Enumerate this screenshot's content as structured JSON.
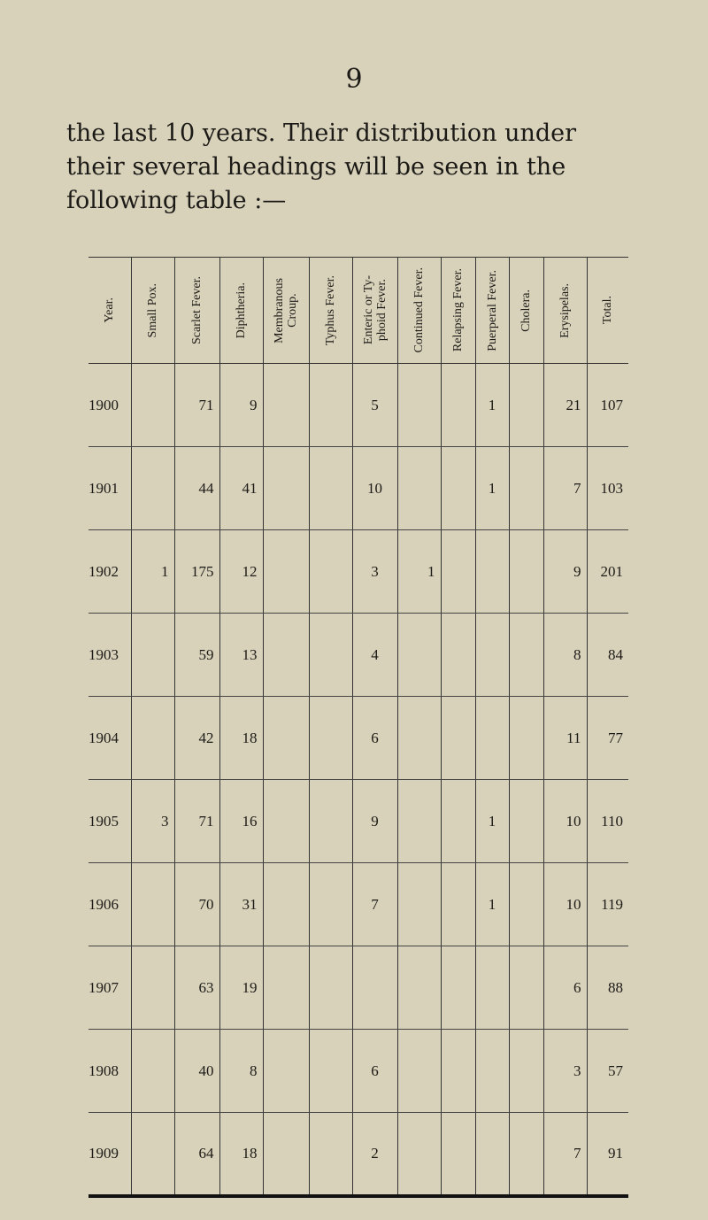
{
  "page_number": "9",
  "paragraph": "the last 10 years. Their distribution under their several headings will be seen in the following table :—",
  "table": {
    "headers": [
      "Year.",
      "Small Pox.",
      "Scarlet Fever.",
      "Diphtheria.",
      "Membranous\nCroup.",
      "Typhus Fever.",
      "Enteric or Ty-\nphoid Fever.",
      "Continued Fever.",
      "Relapsing Fever.",
      "Puerperal Fever.",
      "Cholera.",
      "Erysipelas.",
      "Total."
    ],
    "rows": [
      [
        "1900",
        "",
        "71",
        "9",
        "",
        "",
        "5",
        "",
        "",
        "1",
        "",
        "21",
        "107"
      ],
      [
        "1901",
        "",
        "44",
        "41",
        "",
        "",
        "10",
        "",
        "",
        "1",
        "",
        "7",
        "103"
      ],
      [
        "1902",
        "1",
        "175",
        "12",
        "",
        "",
        "3",
        "1",
        "",
        "",
        "",
        "9",
        "201"
      ],
      [
        "1903",
        "",
        "59",
        "13",
        "",
        "",
        "4",
        "",
        "",
        "",
        "",
        "8",
        "84"
      ],
      [
        "1904",
        "",
        "42",
        "18",
        "",
        "",
        "6",
        "",
        "",
        "",
        "",
        "11",
        "77"
      ],
      [
        "1905",
        "3",
        "71",
        "16",
        "",
        "",
        "9",
        "",
        "",
        "1",
        "",
        "10",
        "110"
      ],
      [
        "1906",
        "",
        "70",
        "31",
        "",
        "",
        "7",
        "",
        "",
        "1",
        "",
        "10",
        "119"
      ],
      [
        "1907",
        "",
        "63",
        "19",
        "",
        "",
        "",
        "",
        "",
        "",
        "",
        "6",
        "88"
      ],
      [
        "1908",
        "",
        "40",
        "8",
        "",
        "",
        "6",
        "",
        "",
        "",
        "",
        "3",
        "57"
      ],
      [
        "1909",
        "",
        "64",
        "18",
        "",
        "",
        "2",
        "",
        "",
        "",
        "",
        "7",
        "91"
      ]
    ]
  }
}
